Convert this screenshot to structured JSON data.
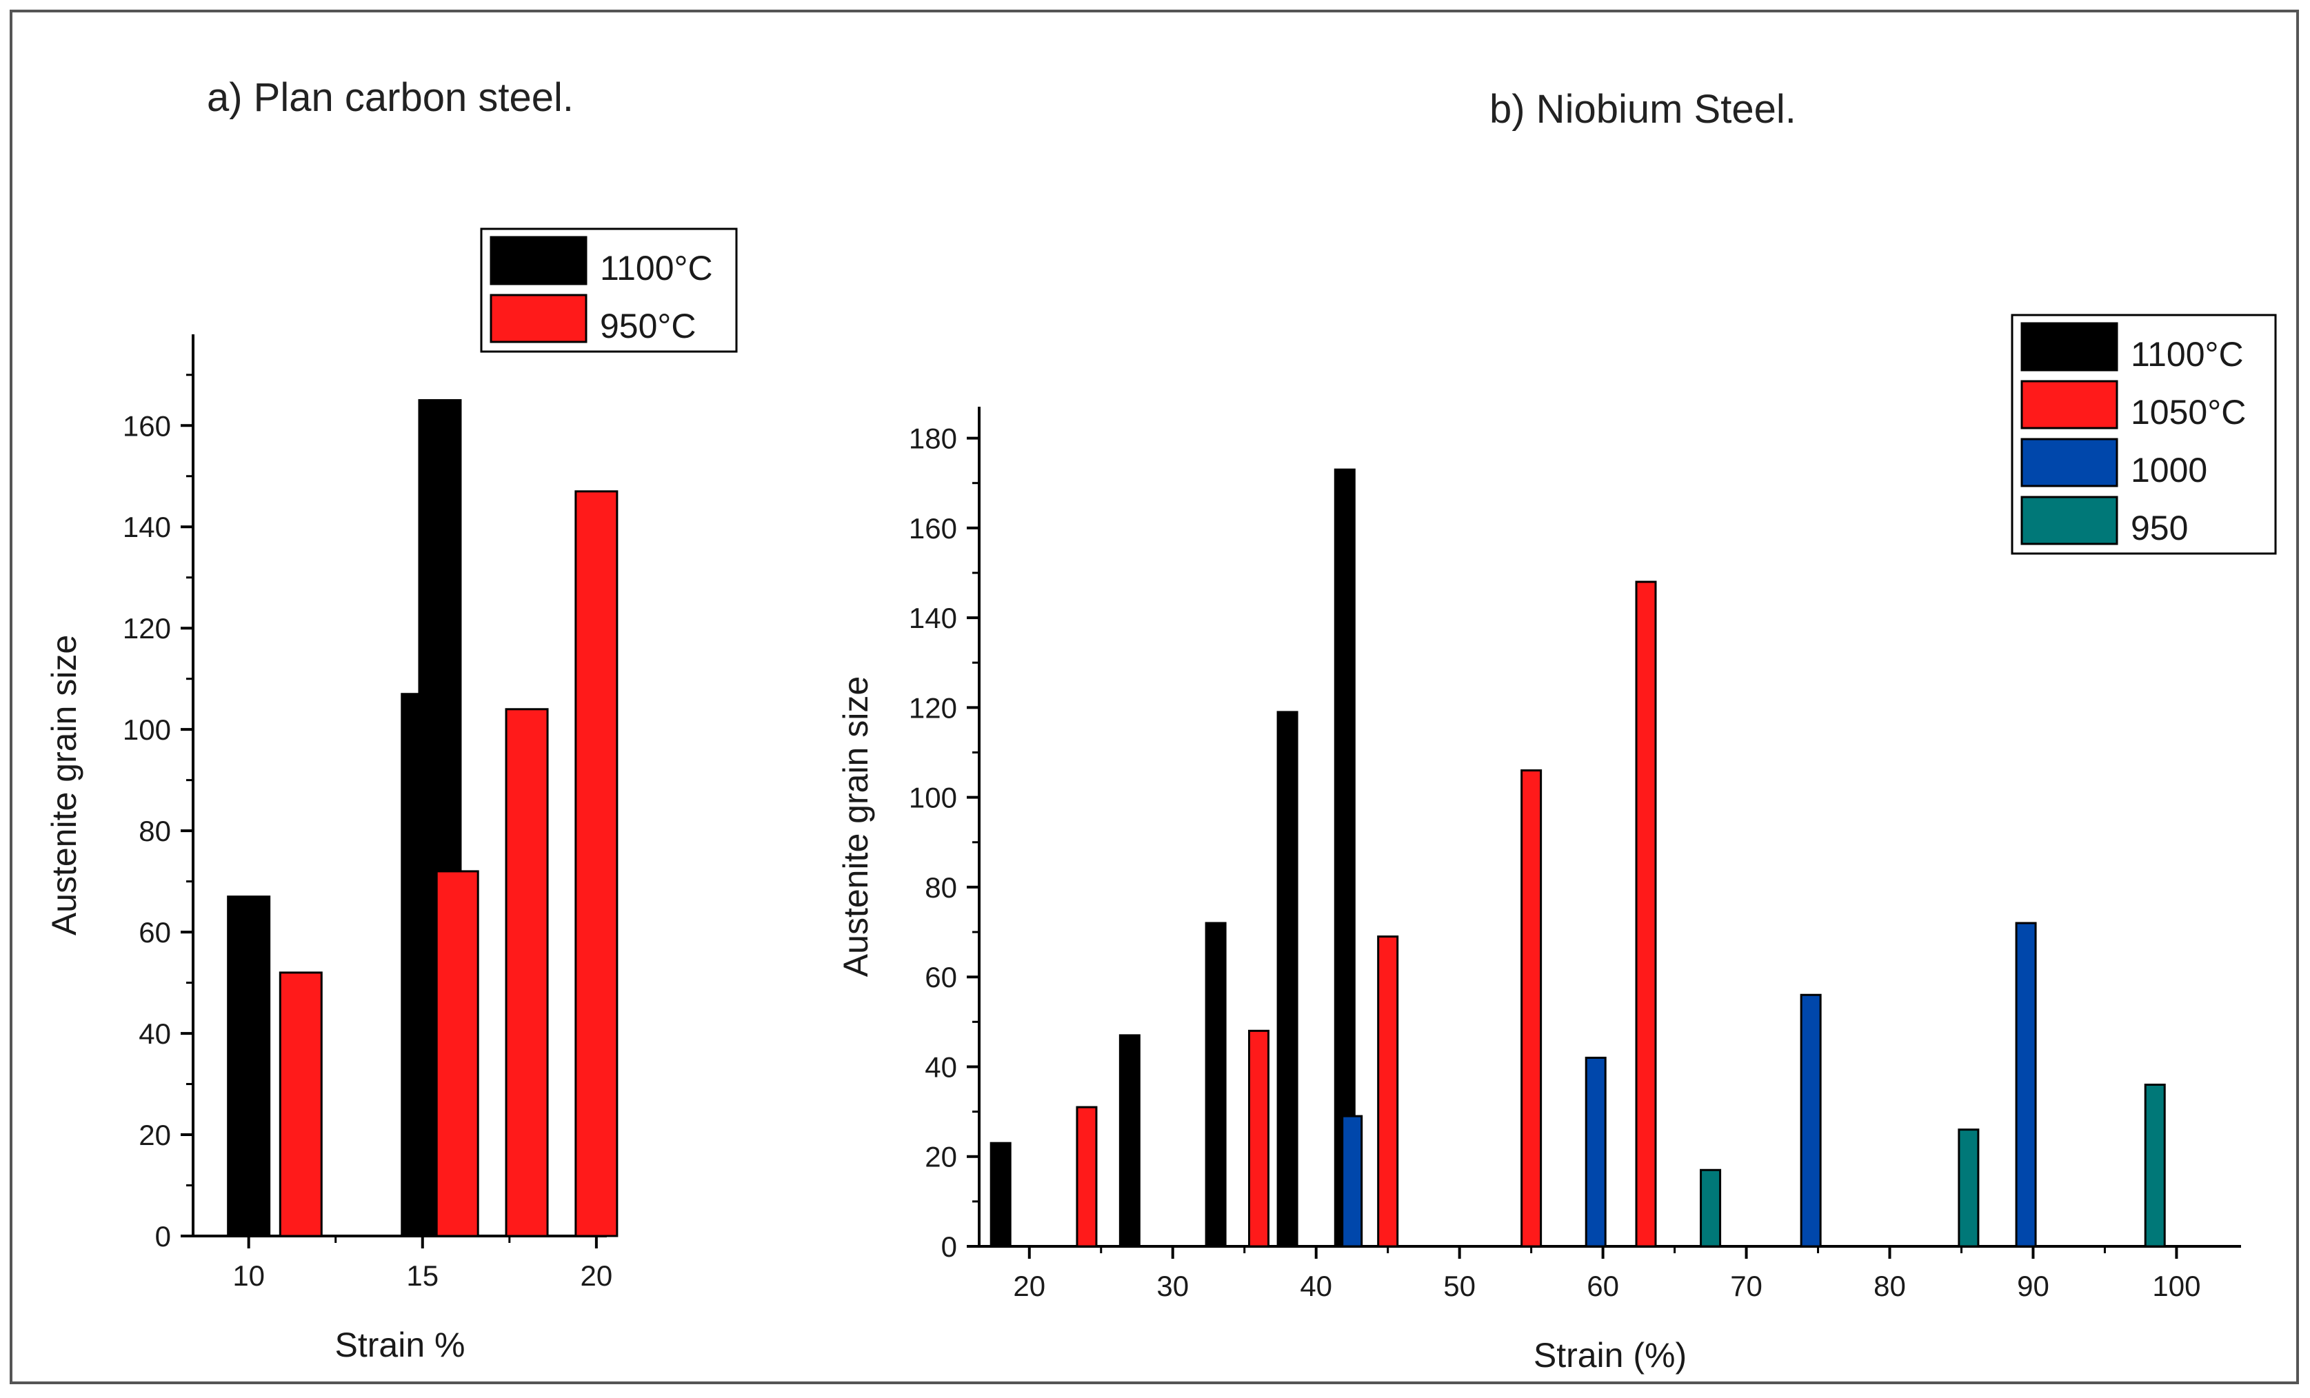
{
  "chart_data": [
    {
      "type": "bar",
      "title": "a) Plan carbon steel.",
      "xlabel": "Strain %",
      "ylabel": "Austenite grain size",
      "ylim": [
        0,
        178
      ],
      "xlim": [
        8.4,
        20.3
      ],
      "xticks": [
        "10",
        "15",
        "20"
      ],
      "yticks": [
        "0",
        "20",
        "40",
        "60",
        "80",
        "100",
        "120",
        "140",
        "160"
      ],
      "legend_position": "top-right",
      "series": [
        {
          "name": "1100°C",
          "color": "#000000",
          "points": [
            {
              "x": 10,
              "y": 67
            },
            {
              "x": 15,
              "y": 107
            },
            {
              "x": 15.5,
              "y": 165
            }
          ]
        },
        {
          "name": "950°C",
          "color": "#ff1a1a",
          "points": [
            {
              "x": 11.5,
              "y": 52
            },
            {
              "x": 16,
              "y": 72
            },
            {
              "x": 18,
              "y": 104
            },
            {
              "x": 20,
              "y": 147
            }
          ]
        }
      ]
    },
    {
      "type": "bar",
      "title": "b) Niobium Steel.",
      "xlabel": "Strain (%)",
      "ylabel": "Austenite grain size",
      "ylim": [
        0,
        187
      ],
      "xlim": [
        16.5,
        104.5
      ],
      "xticks": [
        "20",
        "30",
        "40",
        "50",
        "60",
        "70",
        "80",
        "90",
        "100"
      ],
      "yticks": [
        "0",
        "20",
        "40",
        "60",
        "80",
        "100",
        "120",
        "140",
        "160",
        "180"
      ],
      "legend_position": "top-right",
      "series": [
        {
          "name": "1100°C",
          "color": "#000000",
          "points": [
            {
              "x": 18,
              "y": 23
            },
            {
              "x": 27,
              "y": 47
            },
            {
              "x": 33,
              "y": 72
            },
            {
              "x": 38,
              "y": 119
            },
            {
              "x": 42,
              "y": 173
            }
          ]
        },
        {
          "name": "1050°C",
          "color": "#ff1a1a",
          "points": [
            {
              "x": 24,
              "y": 31
            },
            {
              "x": 36,
              "y": 48
            },
            {
              "x": 45,
              "y": 69
            },
            {
              "x": 55,
              "y": 106
            },
            {
              "x": 63,
              "y": 148
            }
          ]
        },
        {
          "name": "1000",
          "color": "#0047ab",
          "points": [
            {
              "x": 42.5,
              "y": 29
            },
            {
              "x": 59.5,
              "y": 42
            },
            {
              "x": 74.5,
              "y": 56
            },
            {
              "x": 89.5,
              "y": 72
            }
          ]
        },
        {
          "name": "950",
          "color": "#007878",
          "points": [
            {
              "x": 67.5,
              "y": 17
            },
            {
              "x": 85.5,
              "y": 26
            },
            {
              "x": 98.5,
              "y": 36
            }
          ]
        }
      ]
    }
  ]
}
